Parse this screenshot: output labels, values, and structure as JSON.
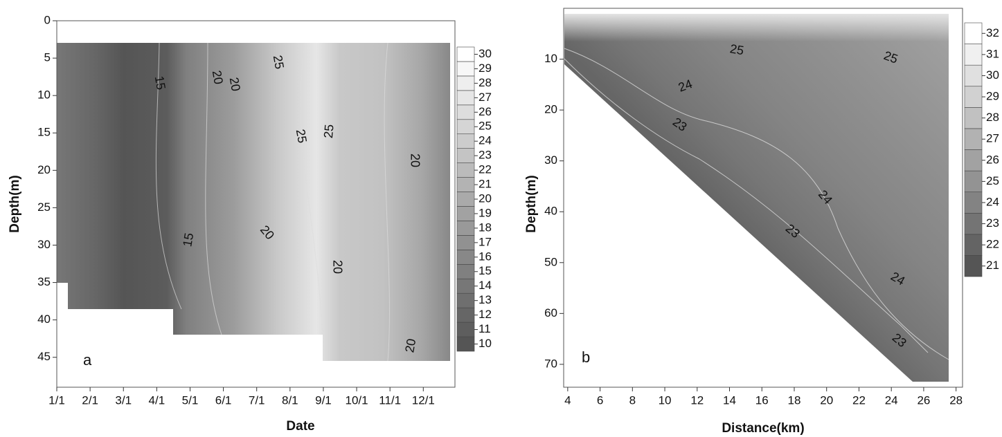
{
  "chart_data": [
    {
      "type": "contour",
      "panel_label": "a",
      "x_label": "Date",
      "y_label": "Depth(m)",
      "xlim": [
        1,
        12.95
      ],
      "xticks": [
        {
          "value": 1,
          "label": "1/1"
        },
        {
          "value": 2,
          "label": "2/1"
        },
        {
          "value": 3,
          "label": "3/1"
        },
        {
          "value": 4,
          "label": "4/1"
        },
        {
          "value": 5,
          "label": "5/1"
        },
        {
          "value": 6,
          "label": "6/1"
        },
        {
          "value": 7,
          "label": "7/1"
        },
        {
          "value": 8,
          "label": "8/1"
        },
        {
          "value": 9,
          "label": "9/1"
        },
        {
          "value": 10,
          "label": "10/1"
        },
        {
          "value": 11,
          "label": "11/1"
        },
        {
          "value": 12,
          "label": "12/1"
        }
      ],
      "ylim": [
        0,
        49
      ],
      "yticks": [
        0,
        5,
        10,
        15,
        20,
        25,
        30,
        35,
        40,
        45
      ],
      "y_inverted": true,
      "clim": [
        10,
        30
      ],
      "cticks": [
        10,
        11,
        12,
        13,
        14,
        15,
        16,
        17,
        18,
        19,
        20,
        21,
        22,
        23,
        24,
        25,
        26,
        27,
        28,
        29,
        30
      ],
      "contour_labels": [
        15,
        20,
        20,
        25,
        25,
        25,
        20,
        15,
        20,
        20,
        20
      ]
    },
    {
      "type": "contour",
      "panel_label": "b",
      "x_label": "Distance(km)",
      "y_label": "Depth(m)",
      "xlim": [
        3.75,
        28.4
      ],
      "xticks": [
        4,
        6,
        8,
        10,
        12,
        14,
        16,
        18,
        20,
        22,
        24,
        26,
        28
      ],
      "ylim": [
        0,
        74.5
      ],
      "yticks": [
        10,
        20,
        30,
        40,
        50,
        60,
        70
      ],
      "y_inverted": true,
      "clim": [
        21,
        32
      ],
      "cticks": [
        21,
        22,
        23,
        24,
        25,
        26,
        27,
        28,
        29,
        30,
        31,
        32
      ],
      "contour_labels": [
        25,
        25,
        24,
        23,
        24,
        23,
        24,
        23
      ]
    }
  ]
}
